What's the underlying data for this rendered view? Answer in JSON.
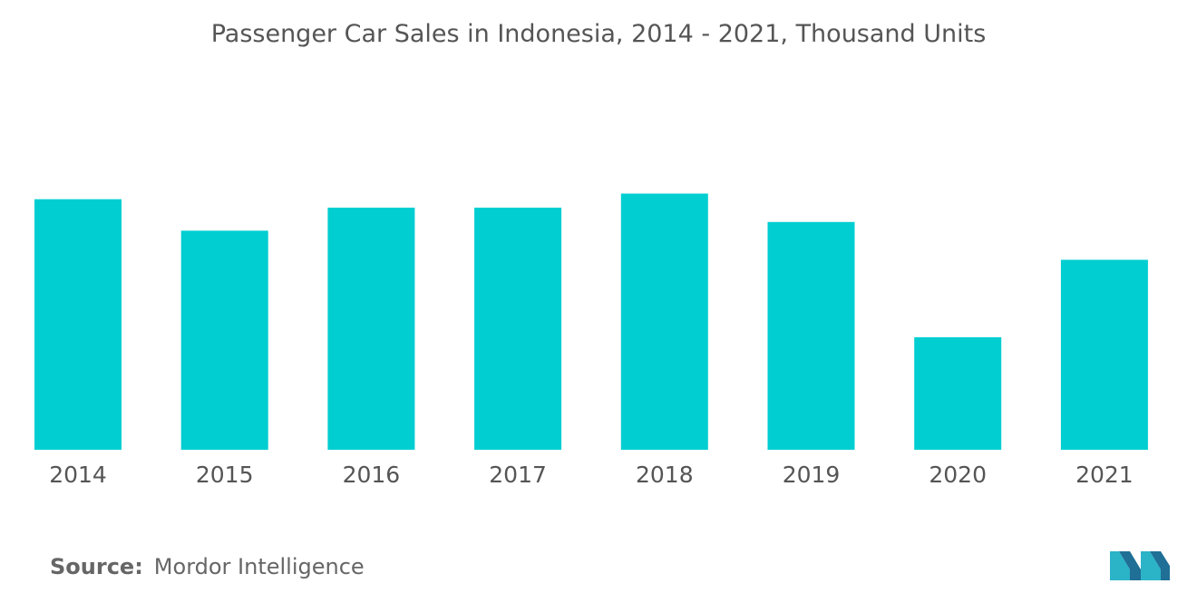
{
  "chart_data": {
    "type": "bar",
    "title": "Passenger Car Sales in Indonesia, 2014 - 2021, Thousand Units",
    "categories": [
      "2014",
      "2015",
      "2016",
      "2017",
      "2018",
      "2019",
      "2020",
      "2021"
    ],
    "values": [
      1013,
      886,
      979,
      979,
      1036,
      921,
      455,
      768
    ],
    "xlabel": "",
    "ylabel": "",
    "ylim": [
      0,
      1100
    ],
    "grid": false,
    "legend": "none",
    "bar_color": "#00CED1"
  },
  "footer": {
    "source_label": "Source:",
    "source_value": "Mordor Intelligence"
  },
  "logo": {
    "icon": "mordor-intelligence-logo",
    "colors": [
      "#1f6f96",
      "#2bb3c8"
    ]
  }
}
